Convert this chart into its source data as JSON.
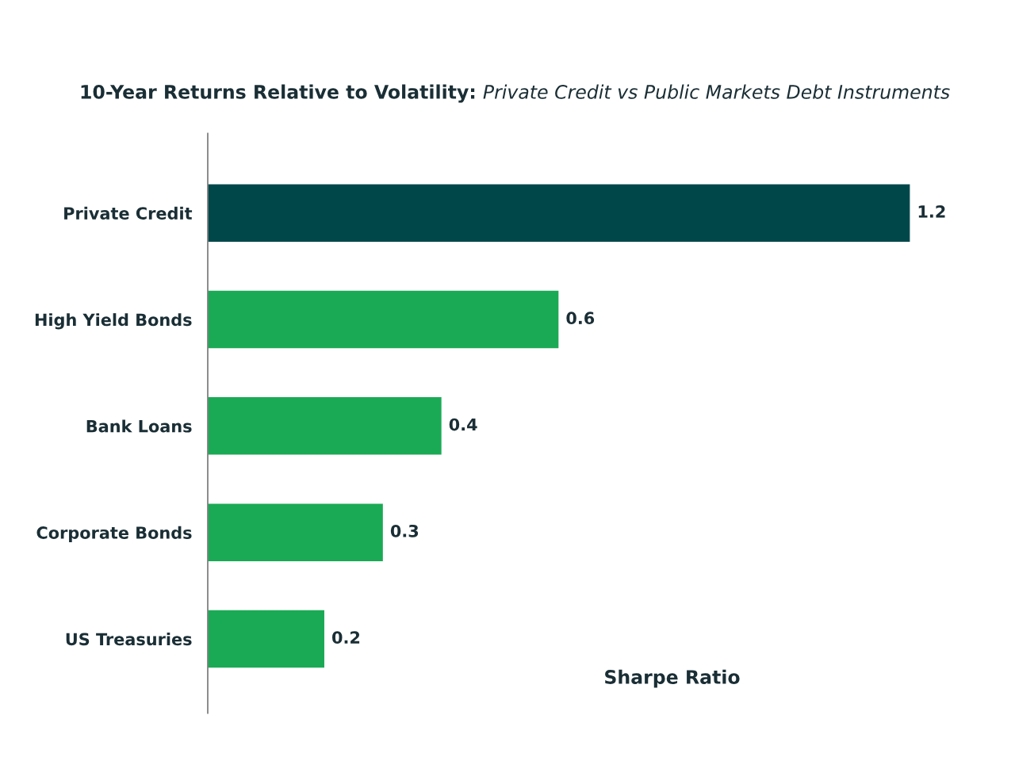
{
  "chart_data": {
    "type": "bar",
    "orientation": "horizontal",
    "title": "10-Year Returns Relative to Volatility:",
    "subtitle": "Private Credit vs Public Markets Debt Instruments",
    "xlabel": "Sharpe Ratio",
    "categories": [
      "Private Credit",
      "High Yield Bonds",
      "Bank Loans",
      "Corporate Bonds",
      "US Treasuries"
    ],
    "values": [
      1.2,
      0.6,
      0.4,
      0.3,
      0.2
    ],
    "colors": [
      "#00474a",
      "#1aaa55",
      "#1aaa55",
      "#1aaa55",
      "#1aaa55"
    ],
    "data_labels": true,
    "grid": false,
    "legend": false,
    "tick_labels": "y"
  }
}
